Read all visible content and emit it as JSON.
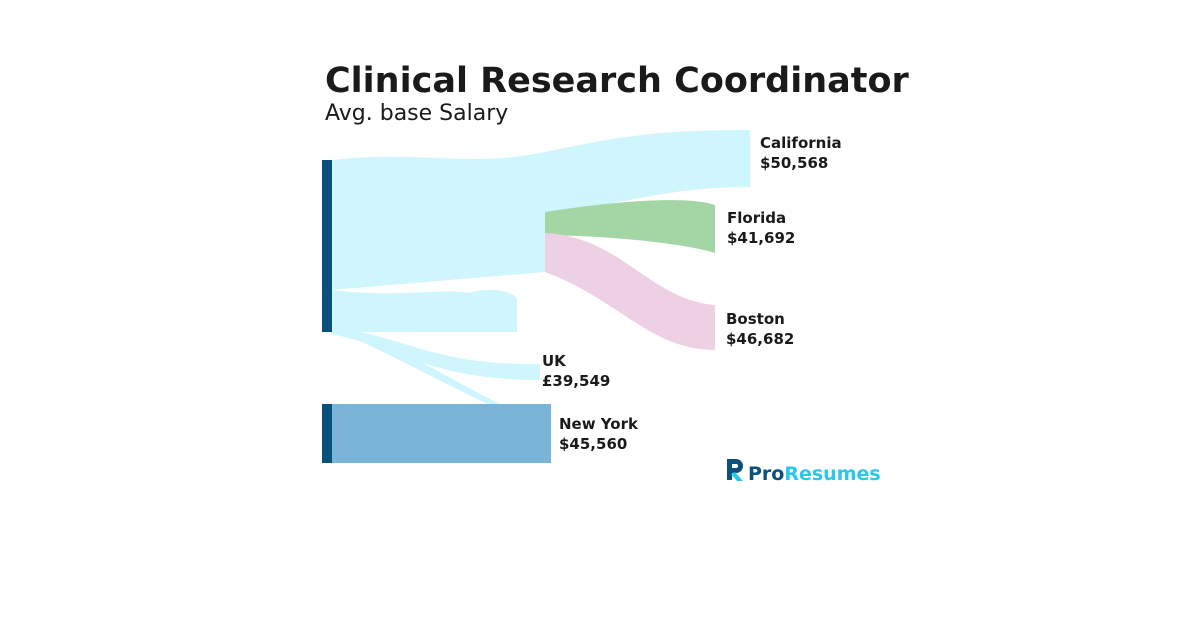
{
  "chart_data": {
    "type": "sankey",
    "title": "Clinical Research Coordinator",
    "subtitle": "Avg. base Salary",
    "categories": [
      "California",
      "Florida",
      "Boston",
      "UK",
      "New York"
    ],
    "values": [
      50568,
      41692,
      46682,
      39549,
      45560
    ],
    "value_labels": [
      "$50,568",
      "$41,692",
      "$46,682",
      "£39,549",
      "$45,560"
    ],
    "colors": [
      "#cff6fd",
      "#a3d5a5",
      "#eed0e5",
      "#cff6fd",
      "#7ab5d8"
    ]
  },
  "brand": {
    "prefix": "Pro",
    "suffix": "Resumes"
  }
}
